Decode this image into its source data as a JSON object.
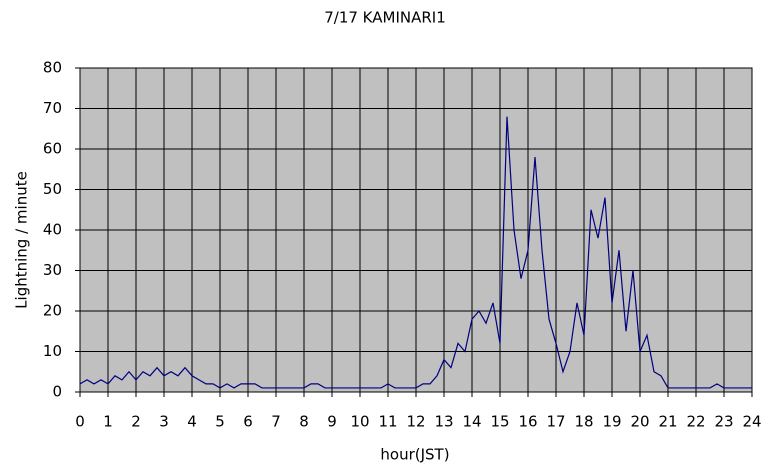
{
  "chart_data": {
    "type": "line",
    "title": "7/17 KAMINARI1",
    "xlabel": "hour(JST)",
    "ylabel": "Lightning / minute",
    "x": [
      0,
      0.25,
      0.5,
      0.75,
      1,
      1.25,
      1.5,
      1.75,
      2,
      2.25,
      2.5,
      2.75,
      3,
      3.25,
      3.5,
      3.75,
      4,
      4.25,
      4.5,
      4.75,
      5,
      5.25,
      5.5,
      5.75,
      6,
      6.25,
      6.5,
      6.75,
      7,
      7.25,
      7.5,
      7.75,
      8,
      8.25,
      8.5,
      8.75,
      9,
      9.25,
      9.5,
      9.75,
      10,
      10.25,
      10.5,
      10.75,
      11,
      11.25,
      11.5,
      11.75,
      12,
      12.25,
      12.5,
      12.75,
      13,
      13.25,
      13.5,
      13.75,
      14,
      14.25,
      14.5,
      14.75,
      15,
      15.25,
      15.5,
      15.75,
      16,
      16.25,
      16.5,
      16.75,
      17,
      17.25,
      17.5,
      17.75,
      18,
      18.25,
      18.5,
      18.75,
      19,
      19.25,
      19.5,
      19.75,
      20,
      20.25,
      20.5,
      20.75,
      21,
      21.25,
      21.5,
      21.75,
      22,
      22.25,
      22.5,
      22.75,
      23,
      23.25,
      23.5,
      23.75,
      24
    ],
    "series": [
      {
        "name": "Lightning",
        "color": "#000080",
        "values": [
          2,
          3,
          2,
          3,
          2,
          4,
          3,
          5,
          3,
          5,
          4,
          6,
          4,
          5,
          4,
          6,
          4,
          3,
          2,
          2,
          1,
          2,
          1,
          2,
          2,
          2,
          1,
          1,
          1,
          1,
          1,
          1,
          1,
          2,
          2,
          1,
          1,
          1,
          1,
          1,
          1,
          1,
          1,
          1,
          2,
          1,
          1,
          1,
          1,
          2,
          2,
          4,
          8,
          6,
          12,
          10,
          18,
          20,
          17,
          22,
          12,
          68,
          40,
          28,
          35,
          58,
          35,
          18,
          12,
          5,
          10,
          22,
          14,
          45,
          38,
          48,
          22,
          35,
          15,
          30,
          10,
          14,
          5,
          4,
          1,
          1,
          1,
          1,
          1,
          1,
          1,
          2,
          1,
          1,
          1,
          1,
          1
        ]
      }
    ],
    "xlim": [
      0,
      24
    ],
    "xticks": [
      0,
      1,
      2,
      3,
      4,
      5,
      6,
      7,
      8,
      9,
      10,
      11,
      12,
      13,
      14,
      15,
      16,
      17,
      18,
      19,
      20,
      21,
      22,
      23,
      24
    ],
    "ylim": [
      0,
      80
    ],
    "yticks": [
      0,
      10,
      20,
      30,
      40,
      50,
      60,
      70,
      80
    ],
    "grid": true,
    "background": "#c0c0c0"
  }
}
